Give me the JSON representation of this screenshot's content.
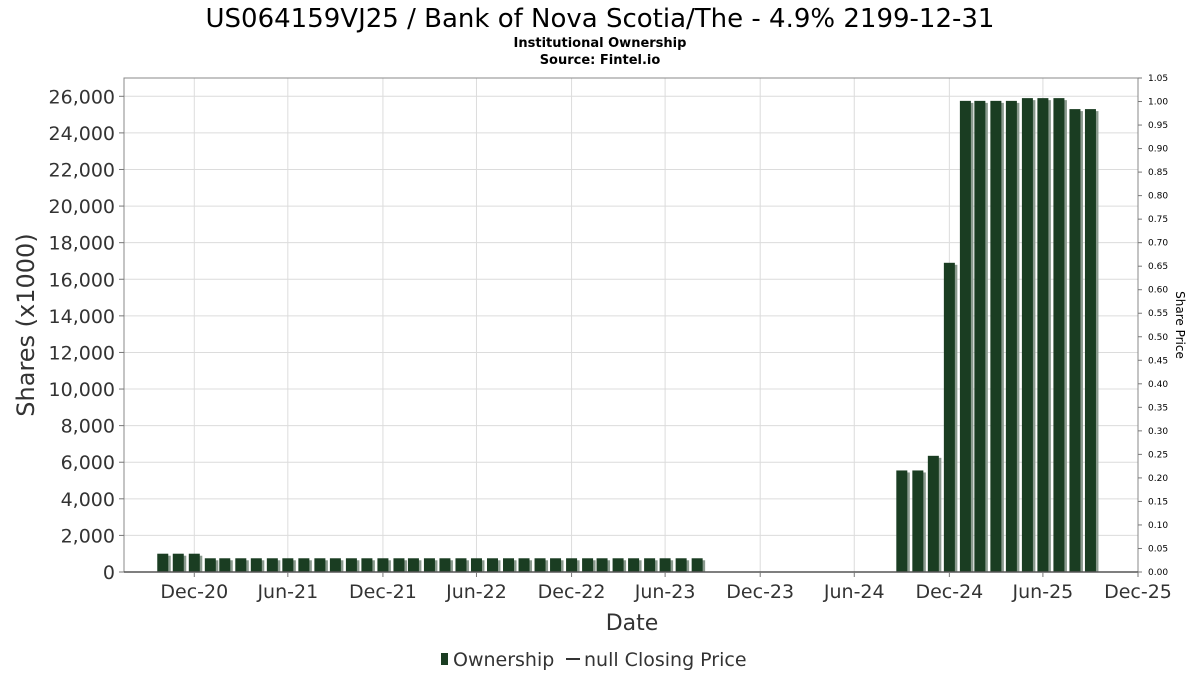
{
  "chart_data": {
    "type": "bar",
    "title": "US064159VJ25 / Bank of Nova Scotia/The - 4.9% 2199-12-31",
    "subtitle": "Institutional Ownership",
    "source": "Source: Fintel.io",
    "xlabel": "Date",
    "ylabel": "Shares (x1000)",
    "y2label": "Share Price",
    "xlim": [
      "2020-08-17",
      "2025-12-31"
    ],
    "ylim": [
      0,
      27000
    ],
    "y2lim": [
      0,
      1.05
    ],
    "grid": true,
    "legend_position": "bottom-center",
    "x_tick_labels": [
      {
        "date": "2020-12-31",
        "label": "Dec-20"
      },
      {
        "date": "2021-06-30",
        "label": "Jun-21"
      },
      {
        "date": "2021-12-31",
        "label": "Dec-21"
      },
      {
        "date": "2022-06-30",
        "label": "Jun-22"
      },
      {
        "date": "2022-12-31",
        "label": "Dec-22"
      },
      {
        "date": "2023-06-30",
        "label": "Jun-23"
      },
      {
        "date": "2023-12-31",
        "label": "Dec-23"
      },
      {
        "date": "2024-06-30",
        "label": "Jun-24"
      },
      {
        "date": "2024-12-31",
        "label": "Dec-24"
      },
      {
        "date": "2025-06-30",
        "label": "Jun-25"
      },
      {
        "date": "2025-12-31",
        "label": "Dec-25"
      }
    ],
    "y_tick_labels": [
      "0",
      "2,000",
      "4,000",
      "6,000",
      "8,000",
      "10,000",
      "12,000",
      "14,000",
      "16,000",
      "18,000",
      "20,000",
      "22,000",
      "24,000",
      "26,000"
    ],
    "y_tick_values": [
      0,
      2000,
      4000,
      6000,
      8000,
      10000,
      12000,
      14000,
      16000,
      18000,
      20000,
      22000,
      24000,
      26000
    ],
    "y2_tick_labels": [
      "0.00",
      "0.05",
      "0.10",
      "0.15",
      "0.20",
      "0.25",
      "0.30",
      "0.35",
      "0.40",
      "0.45",
      "0.50",
      "0.55",
      "0.60",
      "0.65",
      "0.70",
      "0.75",
      "0.80",
      "0.85",
      "0.90",
      "0.95",
      "1.00",
      "1.05"
    ],
    "y2_tick_values": [
      0,
      0.05,
      0.1,
      0.15,
      0.2,
      0.25,
      0.3,
      0.35,
      0.4,
      0.45,
      0.5,
      0.55,
      0.6,
      0.65,
      0.7,
      0.75,
      0.8,
      0.85,
      0.9,
      0.95,
      1.0,
      1.05
    ],
    "series": [
      {
        "name": "Ownership",
        "color": "#1a3d22",
        "shadow_color": "#8a9a8e",
        "points": [
          {
            "x": "2020-10-31",
            "y": 1000
          },
          {
            "x": "2020-11-30",
            "y": 1000
          },
          {
            "x": "2020-12-31",
            "y": 1000
          },
          {
            "x": "2021-01-31",
            "y": 750
          },
          {
            "x": "2021-02-28",
            "y": 750
          },
          {
            "x": "2021-03-31",
            "y": 750
          },
          {
            "x": "2021-04-30",
            "y": 750
          },
          {
            "x": "2021-05-31",
            "y": 750
          },
          {
            "x": "2021-06-30",
            "y": 750
          },
          {
            "x": "2021-07-31",
            "y": 750
          },
          {
            "x": "2021-08-31",
            "y": 750
          },
          {
            "x": "2021-09-30",
            "y": 750
          },
          {
            "x": "2021-10-31",
            "y": 750
          },
          {
            "x": "2021-11-30",
            "y": 750
          },
          {
            "x": "2021-12-31",
            "y": 750
          },
          {
            "x": "2022-01-31",
            "y": 750
          },
          {
            "x": "2022-02-28",
            "y": 750
          },
          {
            "x": "2022-03-31",
            "y": 750
          },
          {
            "x": "2022-04-30",
            "y": 750
          },
          {
            "x": "2022-05-31",
            "y": 750
          },
          {
            "x": "2022-06-30",
            "y": 750
          },
          {
            "x": "2022-07-31",
            "y": 750
          },
          {
            "x": "2022-08-31",
            "y": 750
          },
          {
            "x": "2022-09-30",
            "y": 750
          },
          {
            "x": "2022-10-31",
            "y": 750
          },
          {
            "x": "2022-11-30",
            "y": 750
          },
          {
            "x": "2022-12-31",
            "y": 750
          },
          {
            "x": "2023-01-31",
            "y": 750
          },
          {
            "x": "2023-02-28",
            "y": 750
          },
          {
            "x": "2023-03-31",
            "y": 750
          },
          {
            "x": "2023-04-30",
            "y": 750
          },
          {
            "x": "2023-05-31",
            "y": 750
          },
          {
            "x": "2023-06-30",
            "y": 750
          },
          {
            "x": "2023-07-31",
            "y": 750
          },
          {
            "x": "2023-08-31",
            "y": 750
          },
          {
            "x": "2024-09-30",
            "y": 5550
          },
          {
            "x": "2024-10-31",
            "y": 5550
          },
          {
            "x": "2024-11-30",
            "y": 6350
          },
          {
            "x": "2024-12-31",
            "y": 16900
          },
          {
            "x": "2025-01-31",
            "y": 25750
          },
          {
            "x": "2025-02-28",
            "y": 25750
          },
          {
            "x": "2025-03-31",
            "y": 25750
          },
          {
            "x": "2025-04-30",
            "y": 25750
          },
          {
            "x": "2025-05-31",
            "y": 25900
          },
          {
            "x": "2025-06-30",
            "y": 25900
          },
          {
            "x": "2025-07-31",
            "y": 25900
          },
          {
            "x": "2025-08-31",
            "y": 25300
          },
          {
            "x": "2025-09-30",
            "y": 25300
          }
        ]
      }
    ],
    "legend": [
      {
        "label": "Ownership",
        "type": "bar",
        "color": "#1a3d22"
      },
      {
        "label": "null Closing Price",
        "type": "line",
        "color": "#333333"
      }
    ]
  }
}
